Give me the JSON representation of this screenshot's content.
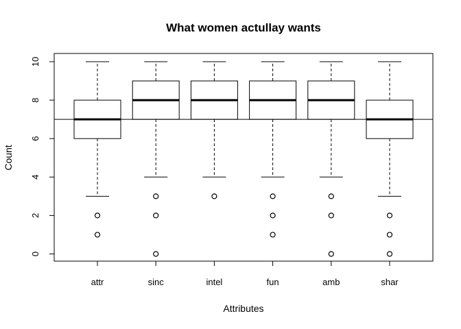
{
  "chart_data": {
    "type": "boxplot",
    "title": "What women actullay wants",
    "xlabel": "Attributes",
    "ylabel": "Count",
    "ylim": [
      0,
      10
    ],
    "yticks": [
      0,
      2,
      4,
      6,
      8,
      10
    ],
    "reference_line_y": 7,
    "categories": [
      "attr",
      "sinc",
      "intel",
      "fun",
      "amb",
      "shar"
    ],
    "boxes": [
      {
        "q1": 6,
        "median": 7,
        "q3": 8,
        "whisker_low": 3,
        "whisker_high": 10,
        "outliers": [
          2,
          1
        ]
      },
      {
        "q1": 7,
        "median": 8,
        "q3": 9,
        "whisker_low": 4,
        "whisker_high": 10,
        "outliers": [
          3,
          2,
          0
        ]
      },
      {
        "q1": 7,
        "median": 8,
        "q3": 9,
        "whisker_low": 4,
        "whisker_high": 10,
        "outliers": [
          3
        ]
      },
      {
        "q1": 7,
        "median": 8,
        "q3": 9,
        "whisker_low": 4,
        "whisker_high": 10,
        "outliers": [
          3,
          2,
          1
        ]
      },
      {
        "q1": 7,
        "median": 8,
        "q3": 9,
        "whisker_low": 4,
        "whisker_high": 10,
        "outliers": [
          3,
          2,
          0
        ]
      },
      {
        "q1": 6,
        "median": 7,
        "q3": 8,
        "whisker_low": 3,
        "whisker_high": 10,
        "outliers": [
          2,
          1,
          0
        ]
      }
    ]
  }
}
